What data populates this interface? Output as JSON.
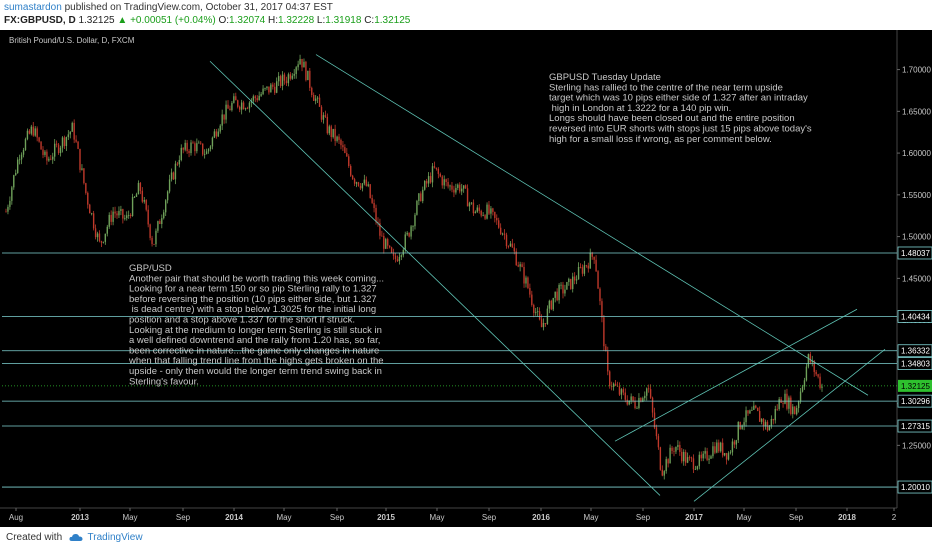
{
  "header": {
    "username": "sumastardon",
    "published_text": "published on TradingView.com, October 31, 2017 04:37 EST",
    "symbol": "FX:GBPUSD, D",
    "last": "1.32125",
    "arrow": "▲",
    "change": "+0.00051 (+0.04%)",
    "o_label": "O:",
    "o_value": "1.32074",
    "h_label": "H:",
    "h_value": "1.32228",
    "l_label": "L:",
    "l_value": "1.31918",
    "c_label": "C:",
    "c_value": "1.32125"
  },
  "footer": {
    "created_with": "Created with",
    "brand": "TradingView"
  },
  "chart_data": {
    "type": "candlestick",
    "title": "British Pound/U.S. Dollar, D, FXCM",
    "x_ticks": [
      "Aug",
      "2013",
      "May",
      "Sep",
      "2014",
      "May",
      "Sep",
      "2015",
      "May",
      "Sep",
      "2016",
      "May",
      "Sep",
      "2017",
      "May",
      "Sep",
      "2018",
      "2"
    ],
    "y_ticks": [
      "1.70000",
      "1.65000",
      "1.60000",
      "1.55000",
      "1.50000",
      "1.45000",
      "1.40000",
      "1.35000",
      "1.30000",
      "1.25000",
      "1.20000"
    ],
    "ylim": [
      1.175,
      1.745
    ],
    "horizontal_levels": [
      {
        "label": "1.48037",
        "value": 1.48037
      },
      {
        "label": "1.40434",
        "value": 1.40434
      },
      {
        "label": "1.36332",
        "value": 1.36332
      },
      {
        "label": "1.34803",
        "value": 1.34803
      },
      {
        "label": "1.30296",
        "value": 1.30296
      },
      {
        "label": "1.27315",
        "value": 1.27315
      },
      {
        "label": "1.20010",
        "value": 1.2001
      }
    ],
    "current_price": {
      "label": "1.32125",
      "value": 1.32125
    },
    "path_keypoints": [
      [
        "Aug",
        1.53
      ],
      [
        "Sep",
        1.6
      ],
      [
        "Oct",
        1.63
      ],
      [
        "Nov",
        1.59
      ],
      [
        "Dec",
        1.61
      ],
      [
        "2013",
        1.63
      ],
      [
        "Feb",
        1.55
      ],
      [
        "Mar",
        1.49
      ],
      [
        "Apr",
        1.53
      ],
      [
        "May",
        1.52
      ],
      [
        "Jun",
        1.56
      ],
      [
        "Jul",
        1.49
      ],
      [
        "Aug",
        1.55
      ],
      [
        "Sep",
        1.6
      ],
      [
        "Oct",
        1.61
      ],
      [
        "Nov",
        1.6
      ],
      [
        "Dec",
        1.64
      ],
      [
        "2014",
        1.66
      ],
      [
        "Feb",
        1.66
      ],
      [
        "Mar",
        1.67
      ],
      [
        "Apr",
        1.68
      ],
      [
        "May",
        1.69
      ],
      [
        "Jul",
        1.715
      ],
      [
        "Aug",
        1.67
      ],
      [
        "Sep",
        1.63
      ],
      [
        "Oct",
        1.61
      ],
      [
        "Nov",
        1.57
      ],
      [
        "Dec",
        1.56
      ],
      [
        "2015",
        1.5
      ],
      [
        "Mar",
        1.47
      ],
      [
        "Apr",
        1.5
      ],
      [
        "May",
        1.55
      ],
      [
        "Jun",
        1.58
      ],
      [
        "Jul",
        1.56
      ],
      [
        "Aug",
        1.56
      ],
      [
        "Sep",
        1.53
      ],
      [
        "Oct",
        1.53
      ],
      [
        "Nov",
        1.51
      ],
      [
        "Dec",
        1.48
      ],
      [
        "2016",
        1.44
      ],
      [
        "Feb",
        1.39
      ],
      [
        "Mar",
        1.43
      ],
      [
        "Apr",
        1.44
      ],
      [
        "May",
        1.46
      ],
      [
        "Jun",
        1.48
      ],
      [
        "Jun 24",
        1.33
      ],
      [
        "Jul",
        1.31
      ],
      [
        "Aug",
        1.3
      ],
      [
        "Sep",
        1.32
      ],
      [
        "Oct",
        1.22
      ],
      [
        "Nov",
        1.25
      ],
      [
        "Dec",
        1.23
      ],
      [
        "2017",
        1.23
      ],
      [
        "Feb",
        1.25
      ],
      [
        "Mar",
        1.24
      ],
      [
        "Apr",
        1.28
      ],
      [
        "May",
        1.29
      ],
      [
        "Jun",
        1.27
      ],
      [
        "Jul",
        1.31
      ],
      [
        "Aug",
        1.29
      ],
      [
        "Sep",
        1.355
      ],
      [
        "Oct",
        1.32
      ]
    ],
    "annotations": [
      {
        "name": "annotation-gbpusd-update",
        "lines": [
          "GBPUSD  Tuesday Update",
          "Sterling has rallied to the centre of the near term upside",
          "target which was 10 pips either side of 1.327 after an intraday",
          " high in London at 1.3222  for a 140 pip win.",
          "Longs should have been closed out and the entire position",
          "reversed into EUR shorts with stops just 15 pips above today's",
          "high for a small loss if wrong, as per comment below."
        ]
      },
      {
        "name": "annotation-gbp-usd",
        "lines": [
          "GBP/USD",
          "Another pair that should be worth trading this week coming...",
          "Looking for a near term 150 or so pip Sterling rally to 1.327",
          "before reversing the position (10 pips either side, but 1.327",
          " is dead centre) with a stop below 1.3025 for the initial long",
          "position and a stop above 1.337 for the short if struck.",
          "Looking at the medium to longer term Sterling is still stuck in",
          "a well defined downtrend and the rally from 1.20 has, so far,",
          "been corrective in nature...the game only changes in nature",
          "when that falling trend line from the highs gets broken on the",
          "upside - only then would the longer term trend swing back in",
          "Sterling's favour."
        ]
      }
    ],
    "colors": {
      "background": "#000000",
      "up": "#6fa15a",
      "down": "#c0392b",
      "grid": "#1c1c1c",
      "level_line": "#7fd3d3",
      "trend_line": "#5fc4b5",
      "text": "#c8c8c8",
      "current_price": "#2ec02e"
    }
  }
}
